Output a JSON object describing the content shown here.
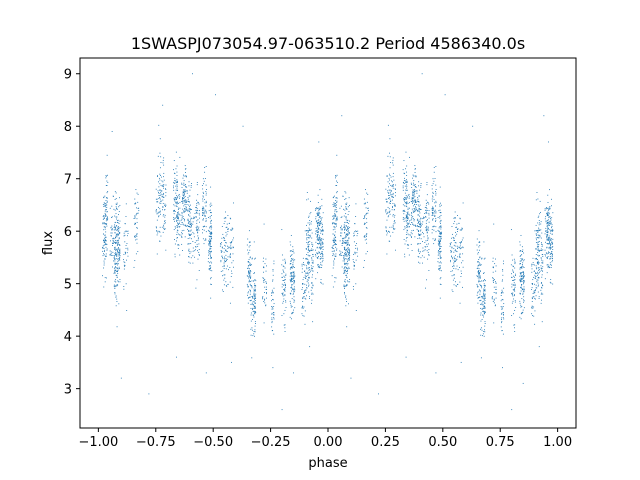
{
  "chart_data": {
    "type": "scatter",
    "title": "1SWASPJ073054.97-063510.2 Period 4586340.0s",
    "xlabel": "phase",
    "ylabel": "flux",
    "xlim": [
      -1.08,
      1.08
    ],
    "ylim": [
      2.25,
      9.3
    ],
    "x_ticks": [
      -1.0,
      -0.75,
      -0.5,
      -0.25,
      0.0,
      0.25,
      0.5,
      0.75,
      1.0
    ],
    "x_tick_labels": [
      "−1.00",
      "−0.75",
      "−0.50",
      "−0.25",
      "0.00",
      "0.25",
      "0.50",
      "0.75",
      "1.00"
    ],
    "y_ticks": [
      3,
      4,
      5,
      6,
      7,
      8,
      9
    ],
    "y_tick_labels": [
      "3",
      "4",
      "5",
      "6",
      "7",
      "8",
      "9"
    ],
    "grid": false,
    "marker_color": "#1f77b4",
    "phase_curve": {
      "phase": [
        0.0,
        0.05,
        0.1,
        0.15,
        0.2,
        0.25,
        0.3,
        0.35,
        0.4,
        0.45,
        0.5,
        0.55,
        0.6,
        0.65,
        0.7,
        0.75,
        0.8,
        0.85,
        0.9,
        0.95,
        1.0
      ],
      "flux": [
        5.8,
        6.0,
        5.7,
        5.9,
        6.3,
        6.6,
        6.5,
        6.3,
        6.1,
        6.0,
        5.9,
        5.6,
        5.4,
        5.1,
        4.85,
        4.7,
        4.8,
        5.2,
        5.5,
        5.8,
        5.8
      ],
      "scatter": 0.35
    },
    "outliers": [
      {
        "x": -0.59,
        "y": 9.0
      },
      {
        "x": 0.41,
        "y": 9.0
      },
      {
        "x": -0.49,
        "y": 8.6
      },
      {
        "x": 0.51,
        "y": 8.6
      },
      {
        "x": -0.37,
        "y": 8.0
      },
      {
        "x": 0.63,
        "y": 8.0
      },
      {
        "x": 0.06,
        "y": 8.2
      },
      {
        "x": 0.94,
        "y": 8.2
      },
      {
        "x": -0.94,
        "y": 7.9
      },
      {
        "x": -0.72,
        "y": 8.4
      },
      {
        "x": -0.04,
        "y": 7.7
      },
      {
        "x": 0.96,
        "y": 7.7
      },
      {
        "x": -0.9,
        "y": 3.2
      },
      {
        "x": 0.1,
        "y": 3.2
      },
      {
        "x": -0.66,
        "y": 3.6
      },
      {
        "x": 0.34,
        "y": 3.6
      },
      {
        "x": -0.2,
        "y": 2.6
      },
      {
        "x": 0.8,
        "y": 2.6
      },
      {
        "x": -0.15,
        "y": 3.3
      },
      {
        "x": 0.85,
        "y": 3.1
      },
      {
        "x": -0.24,
        "y": 3.4
      },
      {
        "x": 0.76,
        "y": 3.4
      },
      {
        "x": -0.08,
        "y": 3.8
      },
      {
        "x": 0.92,
        "y": 3.8
      },
      {
        "x": -0.53,
        "y": 3.3
      },
      {
        "x": 0.47,
        "y": 3.3
      },
      {
        "x": -0.42,
        "y": 3.5
      },
      {
        "x": 0.58,
        "y": 3.5
      },
      {
        "x": -0.78,
        "y": 2.9
      },
      {
        "x": 0.22,
        "y": 2.9
      }
    ]
  }
}
